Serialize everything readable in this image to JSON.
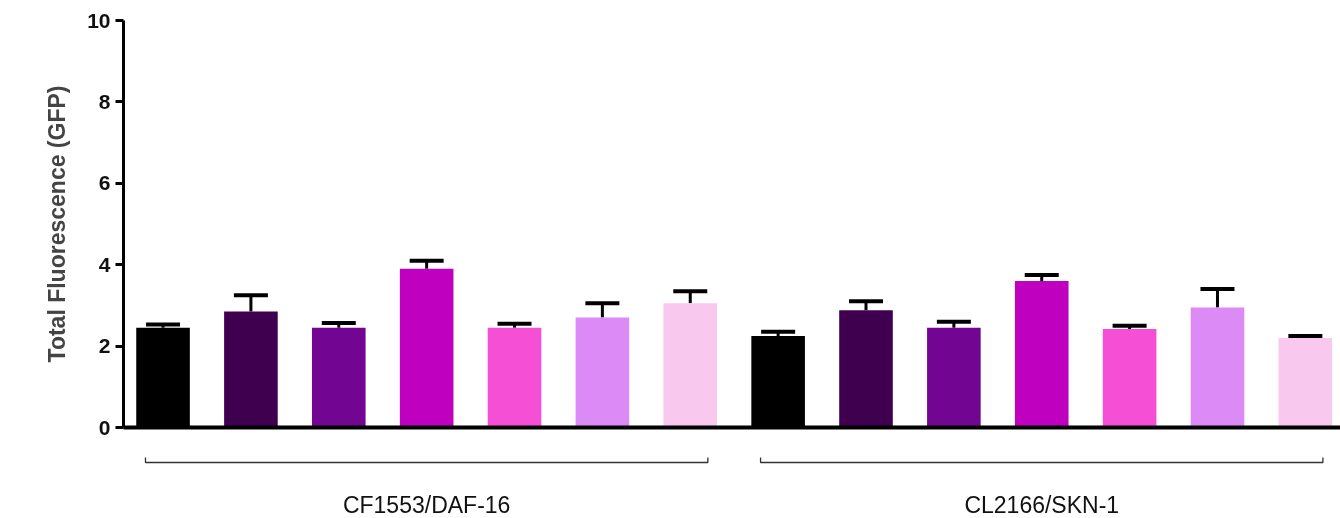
{
  "chart_data": {
    "type": "bar",
    "ylabel": "Total Fluorescence (GFP)",
    "categories": [
      null,
      null,
      null,
      null,
      null,
      null,
      null,
      null,
      null,
      null,
      null,
      null,
      null,
      null
    ],
    "values": [
      2.45,
      2.85,
      2.45,
      3.9,
      2.45,
      2.7,
      3.05,
      2.25,
      2.88,
      2.45,
      3.6,
      2.42,
      2.95,
      2.2
    ],
    "errors": [
      0.08,
      0.4,
      0.12,
      0.2,
      0.1,
      0.35,
      0.3,
      0.1,
      0.22,
      0.15,
      0.15,
      0.08,
      0.45,
      0.05
    ],
    "colors": [
      "#000000",
      "#3f0050",
      "#720592",
      "#bf00bf",
      "#f54fd6",
      "#dc8af6",
      "#f9c8ee",
      "#000000",
      "#3f0050",
      "#720592",
      "#bf00bf",
      "#f54fd6",
      "#dc8af6",
      "#f9c8ee"
    ],
    "ylim": [
      0,
      10
    ],
    "yticks": [
      0,
      2,
      4,
      6,
      8,
      10
    ],
    "grid": false,
    "annotations": [
      "CF1553/DAF-16",
      "CL2166/SKN-1"
    ]
  }
}
